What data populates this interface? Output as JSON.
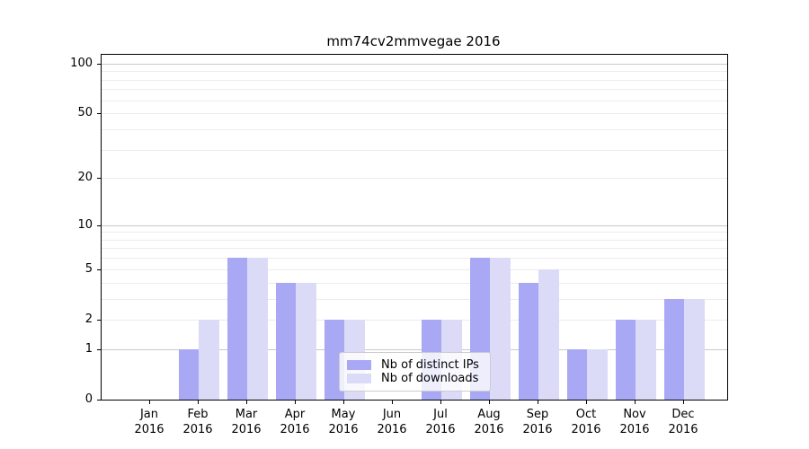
{
  "chart_data": {
    "type": "bar",
    "title": "mm74cv2mmvegae 2016",
    "x_year": "2016",
    "categories": [
      "Jan",
      "Feb",
      "Mar",
      "Apr",
      "May",
      "Jun",
      "Jul",
      "Aug",
      "Sep",
      "Oct",
      "Nov",
      "Dec"
    ],
    "series": [
      {
        "name": "Nb of distinct IPs",
        "color": "#a8a8f4",
        "values": [
          0,
          1,
          6,
          4,
          2,
          0,
          2,
          6,
          4,
          1,
          2,
          3
        ]
      },
      {
        "name": "Nb of downloads",
        "color": "#dbdbf8",
        "values": [
          0,
          2,
          6,
          4,
          2,
          0,
          2,
          6,
          5,
          1,
          2,
          3
        ]
      }
    ],
    "yticks": [
      0,
      1,
      2,
      5,
      10,
      20,
      50,
      100
    ],
    "ylim": [
      0,
      113
    ],
    "yscale": "log1p",
    "grid": "on",
    "legend_position": "lower center",
    "colors": {
      "grid_minor": "#ececec",
      "grid_major": "#c9c9c9",
      "spine": "#000000",
      "text": "#000000",
      "background": "#ffffff"
    }
  }
}
